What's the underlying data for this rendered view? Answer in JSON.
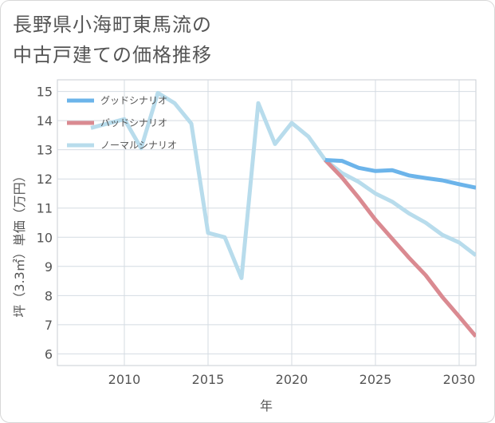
{
  "title_line1": "長野県小海町東馬流の",
  "title_line2": "中古戸建ての価格推移",
  "chart_data": {
    "type": "line",
    "title": "長野県小海町東馬流の中古戸建ての価格推移",
    "xlabel": "年",
    "ylabel": "坪（3.3㎡）単価（万円）",
    "xlim": [
      2006,
      2031
    ],
    "ylim": [
      5.6,
      15.4
    ],
    "xticks": [
      2010,
      2015,
      2020,
      2025,
      2030
    ],
    "yticks": [
      6,
      7,
      8,
      9,
      10,
      11,
      12,
      13,
      14,
      15
    ],
    "grid": true,
    "legend_position": "top-left",
    "series": [
      {
        "name": "グッドシナリオ",
        "color": "#6cb4ea",
        "x": [
          2022,
          2023,
          2024,
          2025,
          2026,
          2027,
          2028,
          2029,
          2030,
          2031
        ],
        "y": [
          12.65,
          12.62,
          12.38,
          12.27,
          12.3,
          12.12,
          12.03,
          11.95,
          11.82,
          11.7
        ]
      },
      {
        "name": "バッドシナリオ",
        "color": "#da8a91",
        "x": [
          2022,
          2023,
          2024,
          2025,
          2026,
          2027,
          2028,
          2029,
          2030,
          2031
        ],
        "y": [
          12.65,
          12.05,
          11.35,
          10.6,
          9.95,
          9.3,
          8.7,
          7.95,
          7.28,
          6.6
        ]
      },
      {
        "name": "ノーマルシナリオ",
        "color": "#b8dcec",
        "x": [
          2008,
          2009,
          2010,
          2011,
          2012,
          2013,
          2014,
          2015,
          2016,
          2017,
          2018,
          2019,
          2020,
          2021,
          2022,
          2023,
          2024,
          2025,
          2026,
          2027,
          2028,
          2029,
          2030,
          2031
        ],
        "y": [
          13.75,
          13.9,
          14.05,
          13.05,
          14.95,
          14.6,
          13.9,
          10.15,
          10.0,
          8.6,
          14.6,
          13.2,
          13.92,
          13.45,
          12.65,
          12.2,
          11.9,
          11.5,
          11.22,
          10.82,
          10.5,
          10.08,
          9.82,
          9.38
        ]
      }
    ]
  }
}
